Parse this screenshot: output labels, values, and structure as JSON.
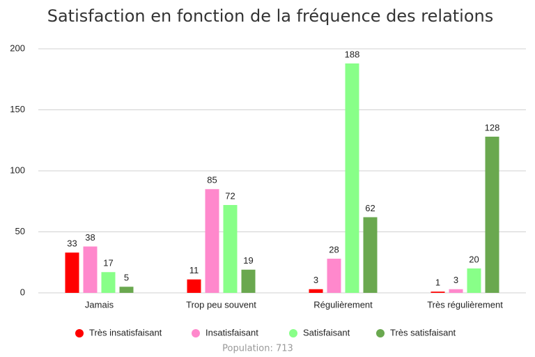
{
  "chart_data": {
    "type": "bar",
    "title": "Satisfaction en fonction de la fréquence des relations",
    "categories": [
      "Jamais",
      "Trop peu souvent",
      "Régulièrement",
      "Très régulièrement"
    ],
    "series": [
      {
        "name": "Très insatisfaisant",
        "color": "#ff0000",
        "values": [
          33,
          11,
          3,
          1
        ]
      },
      {
        "name": "Insatisfaisant",
        "color": "#ff88cc",
        "values": [
          38,
          85,
          28,
          3
        ]
      },
      {
        "name": "Satisfaisant",
        "color": "#88ff88",
        "values": [
          17,
          72,
          188,
          20
        ]
      },
      {
        "name": "Très satisfaisant",
        "color": "#6aa84f",
        "values": [
          5,
          19,
          62,
          128
        ]
      }
    ],
    "ylim": [
      0,
      200
    ],
    "yticks": [
      0,
      50,
      100,
      150,
      200
    ],
    "grid": true,
    "legend": "bottom",
    "footnote": "Population: 713"
  }
}
